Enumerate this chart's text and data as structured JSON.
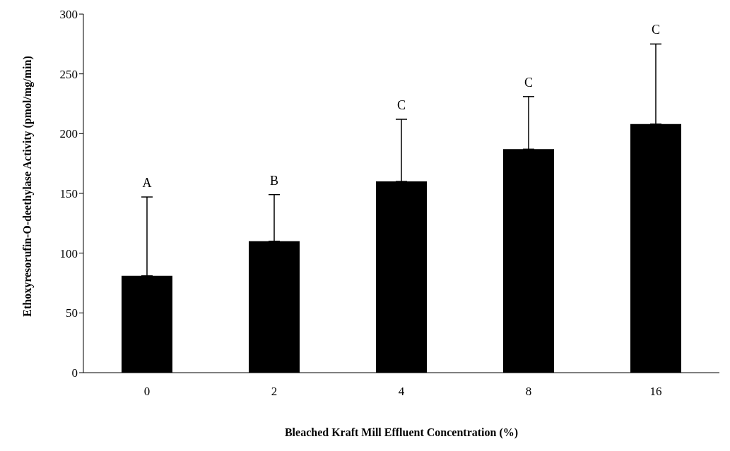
{
  "chart_data": {
    "type": "bar",
    "xlabel": "Bleached Kraft Mill Effluent Concentration (%)",
    "ylabel": "Ethoxyresorufin-O-deethylase Activity (pmol/mg/min)",
    "categories": [
      "0",
      "2",
      "4",
      "8",
      "16"
    ],
    "values": [
      81,
      110,
      160,
      187,
      208
    ],
    "errors": [
      [
        81,
        147
      ],
      [
        110,
        149
      ],
      [
        160,
        212
      ],
      [
        187,
        231
      ],
      [
        208,
        275
      ]
    ],
    "color": "#000000",
    "ylim": [
      0,
      300
    ],
    "yticks": [
      0,
      50,
      100,
      150,
      200,
      250,
      300
    ],
    "grid": false,
    "legend": false,
    "annotations": [
      {
        "text": "A",
        "x": "0",
        "y": 147
      },
      {
        "text": "B",
        "x": "2",
        "y": 149
      },
      {
        "text": "C",
        "x": "4",
        "y": 212
      },
      {
        "text": "C",
        "x": "8",
        "y": 231
      },
      {
        "text": "C",
        "x": "16",
        "y": 275
      }
    ]
  }
}
